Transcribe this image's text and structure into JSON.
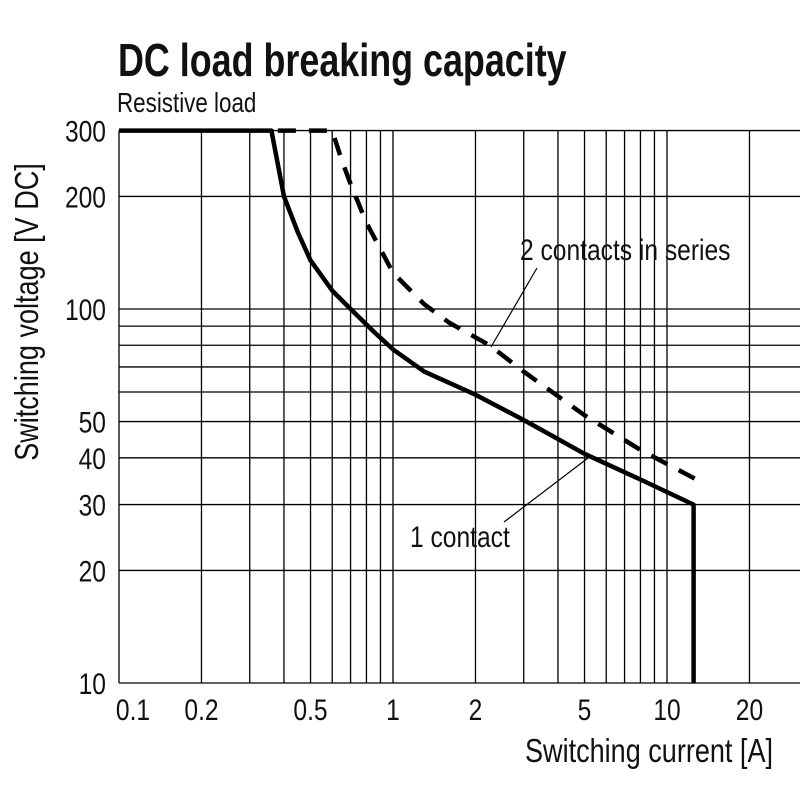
{
  "chart_data": {
    "type": "line",
    "title": "DC load breaking capacity",
    "subtitle": "Resistive load",
    "xlabel": "Switching current [A]",
    "ylabel": "Switching voltage [V DC]",
    "x_scale": "log",
    "y_scale": "log",
    "xlim": [
      0.1,
      30
    ],
    "ylim": [
      10,
      300
    ],
    "grid": true,
    "x_ticks": [
      0.1,
      0.2,
      0.5,
      1,
      2,
      5,
      10,
      20
    ],
    "x_tick_labels": [
      "0.1",
      "0.2",
      "0.5",
      "1",
      "2",
      "5",
      "10",
      "20"
    ],
    "y_ticks": [
      10,
      20,
      30,
      40,
      50,
      100,
      200,
      300
    ],
    "y_tick_labels": [
      "10",
      "20",
      "30",
      "40",
      "50",
      "100",
      "200",
      "300"
    ],
    "x_gridlines": [
      0.1,
      0.2,
      0.3,
      0.4,
      0.5,
      0.6,
      0.7,
      0.8,
      0.9,
      1,
      2,
      3,
      4,
      5,
      6,
      7,
      8,
      9,
      10,
      20
    ],
    "y_gridlines": [
      10,
      20,
      30,
      40,
      50,
      60,
      70,
      80,
      90,
      100,
      200,
      300
    ],
    "series": [
      {
        "name": "1 contact",
        "style": "solid",
        "color": "#000000",
        "x": [
          0.1,
          0.36,
          0.4,
          0.45,
          0.5,
          0.6,
          0.7,
          0.85,
          1,
          1.3,
          2,
          3,
          5,
          8,
          12.5,
          12.5
        ],
        "y": [
          300,
          300,
          200,
          160,
          135,
          112,
          100,
          87,
          78,
          68,
          59,
          50.5,
          41,
          35,
          30,
          10
        ]
      },
      {
        "name": "2 contacts in series",
        "style": "dashed",
        "color": "#000000",
        "x": [
          0.38,
          0.6,
          0.65,
          0.7,
          0.8,
          1,
          1.3,
          1.6,
          2.25,
          3,
          5,
          8,
          12.8
        ],
        "y": [
          300,
          300,
          250,
          216,
          170,
          125,
          103,
          92,
          80,
          68,
          52,
          42,
          35
        ]
      }
    ],
    "annotations": [
      "2 contacts in series",
      "1 contact"
    ]
  }
}
